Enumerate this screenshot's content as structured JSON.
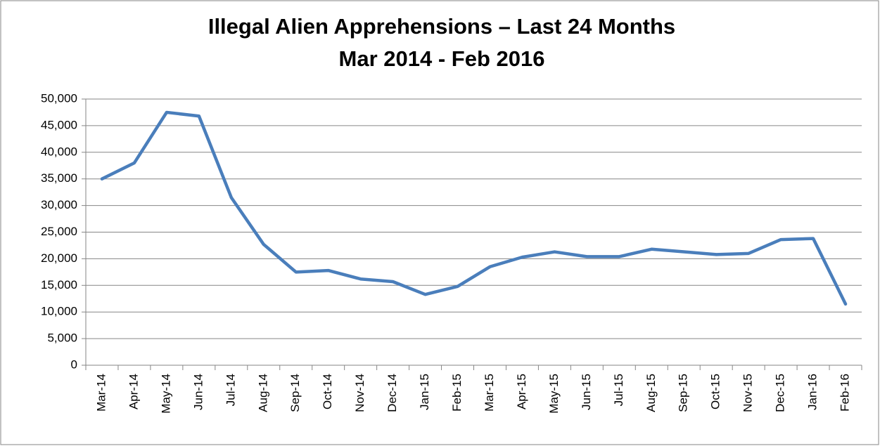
{
  "chart_data": {
    "type": "line",
    "title": "Illegal Alien Apprehensions – Last 24 Months",
    "subtitle": "Mar 2014 - Feb 2016",
    "categories": [
      "Mar-14",
      "Apr-14",
      "May-14",
      "Jun-14",
      "Jul-14",
      "Aug-14",
      "Sep-14",
      "Oct-14",
      "Nov-14",
      "Dec-14",
      "Jan-15",
      "Feb-15",
      "Mar-15",
      "Apr-15",
      "May-15",
      "Jun-15",
      "Jul-15",
      "Aug-15",
      "Sep-15",
      "Oct-15",
      "Nov-15",
      "Dec-15",
      "Jan-16",
      "Feb-16"
    ],
    "values": [
      35000,
      38000,
      47500,
      46800,
      31500,
      22700,
      17500,
      17800,
      16200,
      15700,
      13300,
      14800,
      18500,
      20300,
      21300,
      20400,
      20400,
      21800,
      21300,
      20800,
      21000,
      23600,
      23800,
      11500
    ],
    "color": "#4a7ebb",
    "ylim": [
      0,
      50000
    ],
    "yticks": [
      0,
      {
        "value": 5000,
        "label": "5,000"
      },
      {
        "value": 10000,
        "label": "10,000"
      },
      {
        "value": 15000,
        "label": "15,000"
      },
      {
        "value": 20000,
        "label": "20,000"
      },
      {
        "value": 25000,
        "label": "25,000"
      },
      {
        "value": 30000,
        "label": "30,000"
      },
      {
        "value": 35000,
        "label": "35,000"
      },
      {
        "value": 40000,
        "label": "40,000"
      },
      {
        "value": 45000,
        "label": "45,000"
      },
      {
        "value": 50000,
        "label": "50,000"
      }
    ],
    "grid": true
  }
}
